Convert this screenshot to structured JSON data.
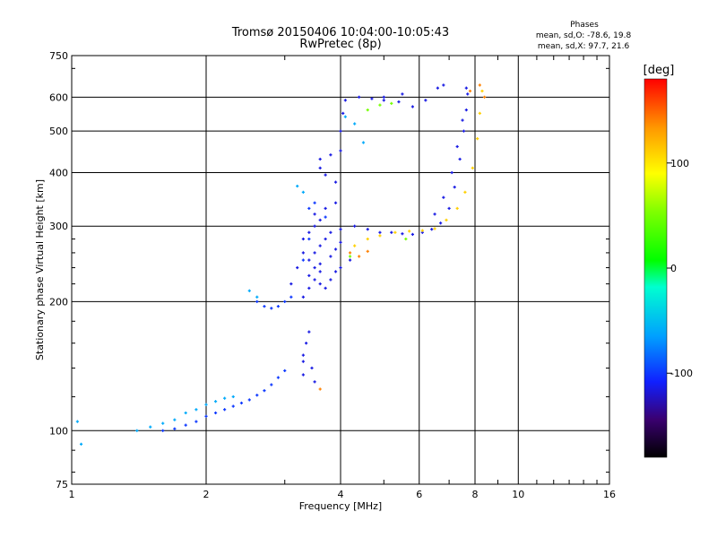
{
  "title": "Tromsø 20150406 10:04:00-10:05:43",
  "subtitle": "RwPretec (8p)",
  "stats": {
    "heading": "Phases",
    "o_line": "mean, sd,O: -78.6, 19.8",
    "x_line": "mean, sd,X:  97.7, 21.6"
  },
  "colorbar": {
    "label": "[deg]",
    "min": -180,
    "max": 180,
    "ticks": [
      "100",
      "0",
      "-100"
    ],
    "tick_values": [
      100,
      0,
      -100
    ]
  },
  "chart_data": {
    "type": "scatter",
    "xlabel": "Frequency [MHz]",
    "ylabel": "Stationary phase Virtual Height [km]",
    "xscale": "log",
    "yscale": "log",
    "xlim": [
      1,
      16
    ],
    "ylim": [
      75,
      750
    ],
    "x_ticks": [
      1,
      2,
      4,
      6,
      8,
      10,
      16
    ],
    "x_tick_labels": [
      "1",
      "2",
      "4",
      "6",
      "8",
      "10",
      "16"
    ],
    "y_ticks": [
      75,
      100,
      200,
      300,
      400,
      500,
      600,
      750
    ],
    "y_tick_labels": [
      "75",
      "100",
      "200",
      "300",
      "400",
      "500",
      "600",
      "750"
    ],
    "grid": true,
    "series": [
      {
        "color_phase": -115,
        "points": [
          [
            3.3,
            145
          ],
          [
            3.3,
            150
          ],
          [
            3.35,
            160
          ],
          [
            3.4,
            170
          ],
          [
            3.3,
            135
          ],
          [
            3.45,
            140
          ],
          [
            3.5,
            130
          ],
          [
            3.3,
            205
          ],
          [
            3.4,
            215
          ],
          [
            3.5,
            225
          ],
          [
            3.6,
            235
          ],
          [
            3.4,
            250
          ],
          [
            3.5,
            260
          ],
          [
            3.6,
            270
          ],
          [
            3.7,
            280
          ],
          [
            3.8,
            290
          ],
          [
            3.5,
            300
          ],
          [
            3.6,
            310
          ],
          [
            3.5,
            320
          ],
          [
            3.7,
            330
          ],
          [
            3.9,
            340
          ],
          [
            3.6,
            245
          ],
          [
            3.8,
            255
          ],
          [
            3.9,
            265
          ],
          [
            4.0,
            275
          ],
          [
            3.7,
            215
          ],
          [
            3.8,
            225
          ],
          [
            3.9,
            235
          ],
          [
            4.0,
            240
          ],
          [
            4.2,
            250
          ],
          [
            3.3,
            280
          ],
          [
            3.4,
            290
          ],
          [
            3.5,
            240
          ],
          [
            3.6,
            220
          ],
          [
            3.1,
            220
          ],
          [
            3.2,
            240
          ],
          [
            3.3,
            260
          ],
          [
            3.4,
            230
          ],
          [
            4.0,
            295
          ],
          [
            4.3,
            300
          ],
          [
            4.6,
            295
          ],
          [
            4.9,
            290
          ],
          [
            5.2,
            290
          ],
          [
            5.5,
            288
          ],
          [
            5.8,
            287
          ],
          [
            6.1,
            290
          ],
          [
            6.4,
            295
          ],
          [
            6.7,
            305
          ],
          [
            7.0,
            330
          ],
          [
            7.2,
            370
          ],
          [
            7.4,
            430
          ],
          [
            7.55,
            500
          ],
          [
            7.65,
            560
          ],
          [
            7.7,
            610
          ],
          [
            7.65,
            630
          ],
          [
            6.5,
            320
          ],
          [
            6.8,
            350
          ],
          [
            7.1,
            400
          ],
          [
            7.3,
            460
          ],
          [
            7.5,
            530
          ],
          [
            3.6,
            430
          ],
          [
            3.8,
            440
          ],
          [
            4.0,
            450
          ],
          [
            4.0,
            500
          ],
          [
            4.05,
            550
          ],
          [
            4.1,
            590
          ],
          [
            4.4,
            600
          ],
          [
            4.7,
            595
          ],
          [
            5.0,
            590
          ],
          [
            5.4,
            585
          ],
          [
            5.8,
            570
          ],
          [
            6.2,
            590
          ],
          [
            6.6,
            630
          ],
          [
            6.8,
            640
          ],
          [
            5.0,
            600
          ],
          [
            5.5,
            610
          ],
          [
            3.9,
            380
          ],
          [
            3.7,
            395
          ],
          [
            3.6,
            410
          ]
        ]
      },
      {
        "color_phase": -100,
        "points": [
          [
            1.6,
            100
          ],
          [
            1.7,
            101
          ],
          [
            1.8,
            103
          ],
          [
            1.9,
            105
          ],
          [
            2.0,
            108
          ],
          [
            2.1,
            110
          ],
          [
            2.2,
            112
          ],
          [
            2.3,
            114
          ],
          [
            2.4,
            116
          ],
          [
            2.5,
            118
          ],
          [
            2.6,
            121
          ],
          [
            2.7,
            124
          ],
          [
            2.8,
            128
          ],
          [
            2.9,
            133
          ],
          [
            3.0,
            138
          ],
          [
            2.6,
            200
          ],
          [
            2.7,
            195
          ],
          [
            2.8,
            193
          ],
          [
            2.9,
            195
          ],
          [
            3.0,
            200
          ],
          [
            3.1,
            205
          ],
          [
            3.4,
            330
          ],
          [
            3.5,
            340
          ],
          [
            3.7,
            315
          ],
          [
            3.4,
            280
          ],
          [
            3.3,
            250
          ]
        ]
      },
      {
        "color_phase": -60,
        "points": [
          [
            1.03,
            105
          ],
          [
            1.05,
            93
          ],
          [
            1.4,
            100
          ],
          [
            1.5,
            102
          ],
          [
            1.6,
            104
          ],
          [
            1.7,
            106
          ],
          [
            1.8,
            110
          ],
          [
            1.9,
            112
          ],
          [
            2.0,
            115
          ],
          [
            2.1,
            117
          ],
          [
            2.2,
            119
          ],
          [
            2.3,
            120
          ],
          [
            2.5,
            212
          ],
          [
            2.6,
            205
          ],
          [
            3.2,
            372
          ],
          [
            3.3,
            360
          ],
          [
            4.1,
            540
          ],
          [
            4.3,
            520
          ],
          [
            4.5,
            470
          ]
        ]
      },
      {
        "color_phase": 50,
        "points": [
          [
            4.6,
            560
          ],
          [
            4.9,
            575
          ],
          [
            5.2,
            580
          ],
          [
            4.2,
            255
          ],
          [
            5.6,
            280
          ]
        ]
      },
      {
        "color_phase": 110,
        "points": [
          [
            4.3,
            270
          ],
          [
            4.6,
            280
          ],
          [
            4.9,
            285
          ],
          [
            5.3,
            290
          ],
          [
            5.7,
            292
          ],
          [
            6.1,
            293
          ],
          [
            6.5,
            296
          ],
          [
            6.9,
            310
          ],
          [
            7.3,
            330
          ],
          [
            7.6,
            360
          ],
          [
            7.9,
            410
          ],
          [
            8.1,
            480
          ],
          [
            8.2,
            550
          ],
          [
            8.3,
            620
          ]
        ]
      },
      {
        "color_phase": 140,
        "points": [
          [
            4.2,
            260
          ],
          [
            4.4,
            255
          ],
          [
            4.6,
            262
          ],
          [
            8.2,
            640
          ],
          [
            8.4,
            600
          ],
          [
            7.8,
            620
          ],
          [
            3.6,
            125
          ]
        ]
      }
    ]
  }
}
